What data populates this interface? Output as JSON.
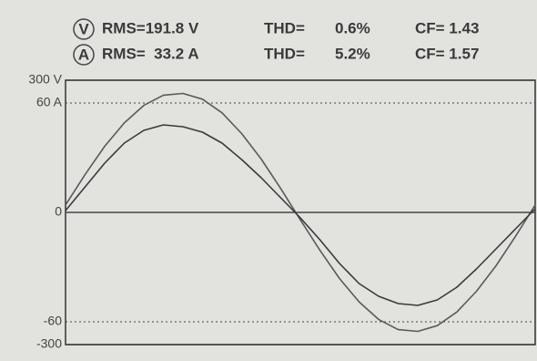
{
  "header": {
    "rows": [
      {
        "symbol": "V",
        "rms": "RMS=191.8 V",
        "thd_label": "THD=",
        "thd": "0.6%",
        "cf": "CF= 1.43"
      },
      {
        "symbol": "A",
        "rms": "RMS=  33.2 A",
        "thd_label": "THD=",
        "thd": "5.2%",
        "cf": "CF= 1.57"
      }
    ]
  },
  "chart_data": {
    "type": "line",
    "ylim": [
      -300,
      300
    ],
    "yticks": [
      {
        "value": 300,
        "label": "300 V"
      },
      0,
      -300
    ],
    "y2lim": [
      -72.5,
      72.5
    ],
    "y2ticks": [
      {
        "value": 60,
        "label": "60 A"
      },
      -60
    ],
    "series": [
      {
        "color": "#5a5a5a",
        "values": [
          17,
          86,
          150,
          203,
          243,
          266,
          270,
          257,
          226,
          179,
          121,
          54,
          -17,
          -86,
          -150,
          -203,
          -243,
          -266,
          -270,
          -257,
          -226,
          -179,
          -121,
          -54,
          17
        ]
      },
      {
        "color": "#3a3a3a",
        "axis": "y2",
        "values": [
          1,
          14,
          27,
          38,
          45,
          48,
          47,
          44,
          38,
          29,
          19,
          8,
          -3,
          -15,
          -28,
          -39,
          -46,
          -50,
          -51,
          -48,
          -41,
          -31,
          -20,
          -9,
          2
        ]
      }
    ]
  }
}
